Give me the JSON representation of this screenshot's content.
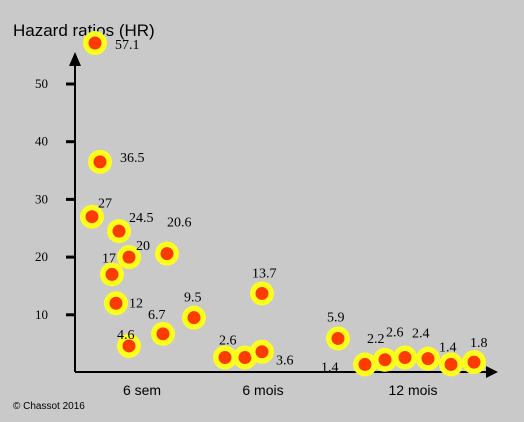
{
  "chart_data": {
    "type": "scatter",
    "title": "Hazard ratios (HR)",
    "xlabel": "",
    "ylabel": "",
    "ylim": [
      0,
      60
    ],
    "grid": false,
    "legend": "none",
    "y_ticks": [
      "10",
      "20",
      "30",
      "40",
      "50"
    ],
    "categories": [
      "6 sem",
      "6 mois",
      "12 mois"
    ],
    "points": [
      {
        "label": "57.1",
        "y": 57.1,
        "group": "6 sem"
      },
      {
        "label": "36.5",
        "y": 36.5,
        "group": "6 sem"
      },
      {
        "label": "27",
        "y": 27,
        "group": "6 sem"
      },
      {
        "label": "24.5",
        "y": 24.5,
        "group": "6 sem"
      },
      {
        "label": "20",
        "y": 20,
        "group": "6 sem"
      },
      {
        "label": "17",
        "y": 17,
        "group": "6 sem"
      },
      {
        "label": "12",
        "y": 12,
        "group": "6 sem"
      },
      {
        "label": "4.6",
        "y": 4.6,
        "group": "6 sem"
      },
      {
        "label": "20.6",
        "y": 20.6,
        "group": "6 sem"
      },
      {
        "label": "6.7",
        "y": 6.7,
        "group": "6 sem"
      },
      {
        "label": "9.5",
        "y": 9.5,
        "group": "6 sem"
      },
      {
        "label": "2.6",
        "y": 2.6,
        "group": "6 mois"
      },
      {
        "label": "",
        "y": 2.6,
        "group": "6 mois"
      },
      {
        "label": "3.6",
        "y": 3.6,
        "group": "6 mois"
      },
      {
        "label": "13.7",
        "y": 13.7,
        "group": "6 mois"
      },
      {
        "label": "5.9",
        "y": 5.9,
        "group": "12 mois"
      },
      {
        "label": "1.4",
        "y": 1.4,
        "group": "12 mois"
      },
      {
        "label": "2.2",
        "y": 2.2,
        "group": "12 mois"
      },
      {
        "label": "2.6",
        "y": 2.6,
        "group": "12 mois"
      },
      {
        "label": "2.4",
        "y": 2.4,
        "group": "12 mois"
      },
      {
        "label": "1.4",
        "y": 1.4,
        "group": "12 mois"
      },
      {
        "label": "1.8",
        "y": 1.8,
        "group": "12 mois"
      }
    ],
    "copyright": "© Chassot 2016"
  },
  "colors": {
    "background": "#c9c9c9",
    "marker_outer": "#ffff1e",
    "marker_inner": "#ff3b00",
    "axis": "#000000"
  }
}
